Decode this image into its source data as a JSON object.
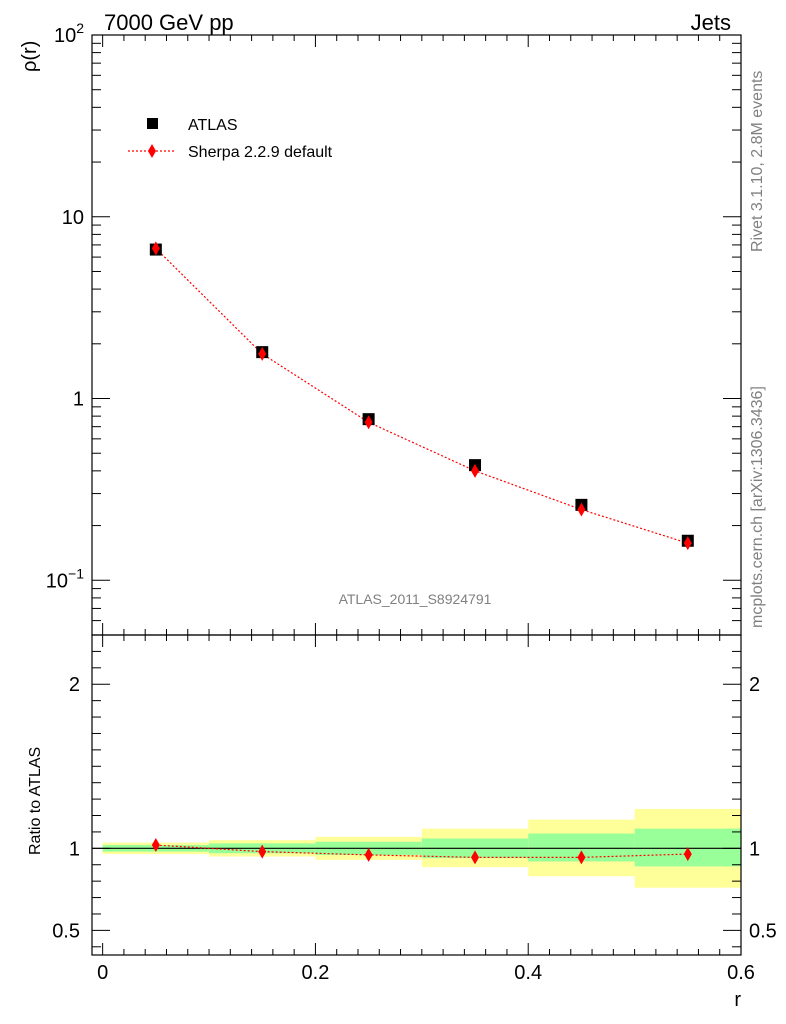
{
  "header": {
    "left_title": "7000 GeV pp",
    "right_title": "Jets"
  },
  "side_text": {
    "rivet": "Rivet 3.1.10,  2.8M events",
    "mcplots": "mcplots.cern.ch [arXiv:1306.3436]"
  },
  "analysis_id": "ATLAS_2011_S8924791",
  "legend": {
    "data_label": "ATLAS",
    "mc_label": "Sherpa 2.2.9 default"
  },
  "colors": {
    "data": "#000000",
    "mc": "#ff0000",
    "band_inner": "#99ff99",
    "band_outer": "#ffff99"
  },
  "chart_data": [
    {
      "type": "scatter",
      "panel": "main",
      "ylabel": "ρ(r)",
      "yscale": "log",
      "ylim": [
        0.05,
        100
      ],
      "xlim": [
        -0.01,
        0.6
      ],
      "y_ticks": [
        {
          "value": 0.1,
          "label": "10",
          "sup": "−1"
        },
        {
          "value": 1,
          "label": "1",
          "sup": ""
        },
        {
          "value": 10,
          "label": "10",
          "sup": ""
        },
        {
          "value": 100,
          "label": "10",
          "sup": "2"
        }
      ],
      "series": [
        {
          "name": "ATLAS",
          "marker": "square",
          "x": [
            0.05,
            0.15,
            0.25,
            0.35,
            0.45,
            0.55
          ],
          "y": [
            6.6,
            1.8,
            0.77,
            0.43,
            0.26,
            0.165
          ]
        },
        {
          "name": "Sherpa 2.2.9 default",
          "marker": "diamond",
          "line": "dotted",
          "x": [
            0.05,
            0.15,
            0.25,
            0.35,
            0.45,
            0.55
          ],
          "y": [
            6.7,
            1.76,
            0.74,
            0.4,
            0.245,
            0.16
          ]
        }
      ]
    },
    {
      "type": "scatter",
      "panel": "ratio",
      "ylabel": "Ratio to ATLAS",
      "xlabel": "r",
      "ylim": [
        0.35,
        2.3
      ],
      "xlim": [
        -0.01,
        0.6
      ],
      "y_ticks": [
        {
          "value": 0.5,
          "label": "0.5"
        },
        {
          "value": 1,
          "label": "1"
        },
        {
          "value": 2,
          "label": "2"
        }
      ],
      "x_ticks": [
        {
          "value": 0,
          "label": "0"
        },
        {
          "value": 0.2,
          "label": "0.2"
        },
        {
          "value": 0.4,
          "label": "0.4"
        },
        {
          "value": 0.6,
          "label": "0.6"
        }
      ],
      "bands": [
        {
          "xlo": 0.0,
          "xhi": 0.1,
          "inner": [
            0.98,
            1.02
          ],
          "outer": [
            0.965,
            1.035
          ]
        },
        {
          "xlo": 0.1,
          "xhi": 0.2,
          "inner": [
            0.97,
            1.03
          ],
          "outer": [
            0.95,
            1.05
          ]
        },
        {
          "xlo": 0.2,
          "xhi": 0.3,
          "inner": [
            0.96,
            1.04
          ],
          "outer": [
            0.93,
            1.07
          ]
        },
        {
          "xlo": 0.3,
          "xhi": 0.4,
          "inner": [
            0.94,
            1.06
          ],
          "outer": [
            0.885,
            1.12
          ]
        },
        {
          "xlo": 0.4,
          "xhi": 0.5,
          "inner": [
            0.92,
            1.09
          ],
          "outer": [
            0.83,
            1.175
          ]
        },
        {
          "xlo": 0.5,
          "xhi": 0.6,
          "inner": [
            0.89,
            1.12
          ],
          "outer": [
            0.76,
            1.24
          ]
        }
      ],
      "series": [
        {
          "name": "Sherpa 2.2.9 default",
          "marker": "diamond",
          "line": "dotted",
          "x": [
            0.05,
            0.15,
            0.25,
            0.35,
            0.45,
            0.55
          ],
          "y": [
            1.02,
            0.98,
            0.96,
            0.945,
            0.945,
            0.965
          ]
        }
      ]
    }
  ]
}
